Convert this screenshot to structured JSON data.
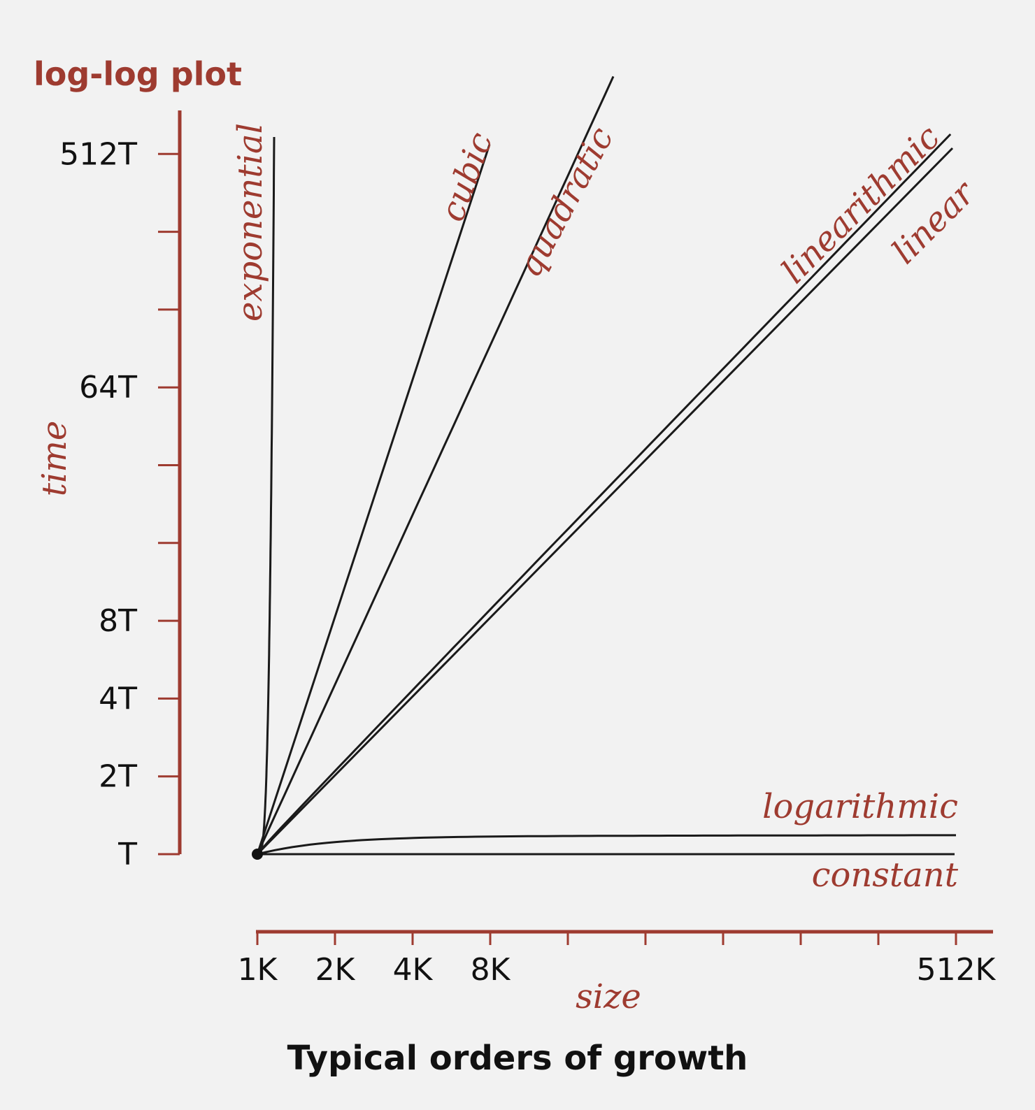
{
  "chart_data": {
    "type": "line",
    "title": "log-log plot",
    "caption": "Typical orders of growth",
    "xlabel": "size",
    "ylabel": "time",
    "scale": "log-log",
    "x_tick_labels": [
      "1K",
      "2K",
      "4K",
      "8K",
      "",
      "",
      "",
      "",
      "",
      "512K"
    ],
    "y_tick_labels": [
      "T",
      "2T",
      "4T",
      "8T",
      "",
      "",
      "64T",
      "",
      "",
      "512T"
    ],
    "series": [
      {
        "name": "constant",
        "shape": "flat"
      },
      {
        "name": "logarithmic",
        "shape": "slow-saturating"
      },
      {
        "name": "linear",
        "slope": 1
      },
      {
        "name": "linearithmic",
        "slope": 1.04
      },
      {
        "name": "quadratic",
        "slope": 2
      },
      {
        "name": "cubic",
        "slope": 3
      },
      {
        "name": "exponential",
        "shape": "exploding"
      }
    ],
    "colors": {
      "axis": "#9e3b30",
      "curve": "#1a1a1a",
      "label": "#9e3b30"
    }
  }
}
